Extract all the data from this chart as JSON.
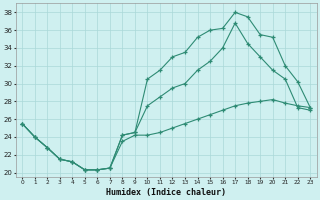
{
  "background_color": "#cff0f0",
  "grid_color": "#aad8d8",
  "line_color": "#2e8b74",
  "xlabel": "Humidex (Indice chaleur)",
  "xlim": [
    -0.5,
    23.5
  ],
  "ylim": [
    19.5,
    39.0
  ],
  "yticks": [
    20,
    22,
    24,
    26,
    28,
    30,
    32,
    34,
    36,
    38
  ],
  "xticks": [
    0,
    1,
    2,
    3,
    4,
    5,
    6,
    7,
    8,
    9,
    10,
    11,
    12,
    13,
    14,
    15,
    16,
    17,
    18,
    19,
    20,
    21,
    22,
    23
  ],
  "series1_x": [
    0,
    1,
    2,
    3,
    4,
    5,
    6,
    7,
    8,
    9,
    10,
    11,
    12,
    13,
    14,
    15,
    16,
    17,
    18,
    19,
    20,
    21,
    22,
    23
  ],
  "series1_y": [
    25.5,
    24.0,
    22.8,
    21.5,
    21.2,
    20.3,
    20.3,
    20.5,
    24.2,
    24.5,
    30.5,
    31.5,
    33.0,
    33.5,
    35.2,
    36.0,
    36.2,
    38.0,
    37.5,
    35.5,
    35.2,
    32.0,
    30.2,
    27.3
  ],
  "series2_x": [
    0,
    1,
    2,
    3,
    4,
    5,
    6,
    7,
    8,
    9,
    10,
    11,
    12,
    13,
    14,
    15,
    16,
    17,
    18,
    19,
    20,
    21,
    22,
    23
  ],
  "series2_y": [
    25.5,
    24.0,
    22.8,
    21.5,
    21.2,
    20.3,
    20.3,
    20.5,
    24.2,
    24.5,
    27.5,
    28.5,
    29.5,
    30.0,
    31.5,
    32.5,
    34.0,
    36.8,
    34.5,
    33.0,
    31.5,
    30.5,
    27.3,
    27.0
  ],
  "series3_x": [
    0,
    1,
    2,
    3,
    4,
    5,
    6,
    7,
    8,
    9,
    10,
    11,
    12,
    13,
    14,
    15,
    16,
    17,
    18,
    19,
    20,
    21,
    22,
    23
  ],
  "series3_y": [
    25.5,
    24.0,
    22.8,
    21.5,
    21.2,
    20.3,
    20.3,
    20.5,
    23.5,
    24.2,
    24.2,
    24.5,
    25.0,
    25.5,
    26.0,
    26.5,
    27.0,
    27.5,
    27.8,
    28.0,
    28.2,
    27.8,
    27.5,
    27.3
  ]
}
